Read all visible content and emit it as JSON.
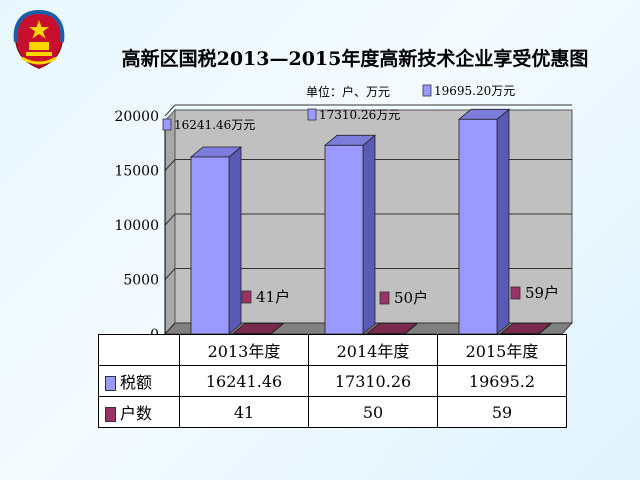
{
  "title": "高新区国税2013—2015年度高新技术企业享受优惠图",
  "unit_note": "单位：户、万元",
  "colors": {
    "tax": "#9999ff",
    "tax_side": "#5a5ab4",
    "count": "#993366",
    "count_side": "#5a1f3a",
    "wall": "#c0c0c0",
    "floor": "#808080"
  },
  "chart_data": {
    "type": "bar",
    "categories": [
      "2013年度",
      "2014年度",
      "2015年度"
    ],
    "ylim": [
      0,
      20000
    ],
    "yticks": [
      0,
      5000,
      10000,
      15000,
      20000
    ],
    "series": [
      {
        "name": "税额",
        "values": [
          16241.46,
          17310.26,
          19695.2
        ],
        "bar_labels": [
          "16241.46万元",
          "17310.26万元",
          "19695.20万元"
        ]
      },
      {
        "name": "户数",
        "values": [
          41,
          50,
          59
        ],
        "bar_labels": [
          "41户",
          "50户",
          "59户"
        ]
      }
    ]
  },
  "table": {
    "rows": [
      {
        "label": "税额",
        "cells": [
          "16241.46",
          "17310.26",
          "19695.2"
        ]
      },
      {
        "label": "户数",
        "cells": [
          "41",
          "50",
          "59"
        ]
      }
    ]
  }
}
